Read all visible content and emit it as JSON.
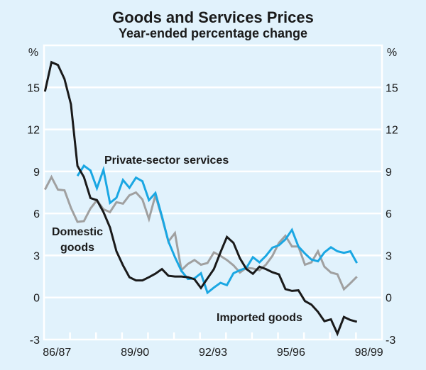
{
  "chart_data": {
    "type": "line",
    "title": "Goods and Services Prices",
    "subtitle": "Year-ended percentage change",
    "ylabel_left": "%",
    "ylabel_right": "%",
    "xlabel": "",
    "ylim": [
      -3,
      18
    ],
    "yticks": [
      -3,
      0,
      3,
      6,
      9,
      12,
      15
    ],
    "ytick_labels": [
      "-3",
      "0",
      "3",
      "6",
      "9",
      "12",
      "15"
    ],
    "x_range_years": [
      "86/87",
      "98/99"
    ],
    "x_tick_labels": [
      "86/87",
      "89/90",
      "92/93",
      "95/96",
      "98/99"
    ],
    "x_label_positions_year_index": [
      0,
      3,
      6,
      9,
      12
    ],
    "frequency": "quarterly",
    "x_start_quarter_offset": 0.1,
    "grid": true,
    "legend": "inline labels",
    "series": [
      {
        "name": "Imported goods",
        "label": "Imported goods",
        "color": "#1a1a1a",
        "start_index": 0,
        "values": [
          14.7,
          16.8,
          16.6,
          15.6,
          13.8,
          9.4,
          8.6,
          7.1,
          6.95,
          6.1,
          5.0,
          3.3,
          2.3,
          1.45,
          1.22,
          1.22,
          1.45,
          1.7,
          2.03,
          1.55,
          1.5,
          1.5,
          1.45,
          1.3,
          0.68,
          1.36,
          2.03,
          3.22,
          4.32,
          3.9,
          2.8,
          2.03,
          1.69,
          2.2,
          2.03,
          1.8,
          1.65,
          0.6,
          0.47,
          0.51,
          -0.25,
          -0.51,
          -1.02,
          -1.69,
          -1.56,
          -2.58,
          -1.39,
          -1.61,
          -1.73
        ]
      },
      {
        "name": "Domestic goods",
        "label": [
          "Domestic",
          "goods"
        ],
        "color": "#a0a0a0",
        "start_index": 0,
        "values": [
          7.7,
          8.6,
          7.7,
          7.65,
          6.4,
          5.4,
          5.45,
          6.35,
          6.95,
          6.3,
          6.1,
          6.8,
          6.7,
          7.3,
          7.5,
          7.0,
          5.6,
          7.3,
          5.7,
          4.0,
          4.6,
          1.95,
          2.4,
          2.68,
          2.34,
          2.46,
          3.22,
          2.97,
          2.68,
          2.3,
          1.78,
          2.12,
          2.07,
          1.95,
          2.34,
          2.97,
          3.9,
          4.41,
          3.64,
          3.64,
          2.34,
          2.51,
          3.3,
          2.2,
          1.78,
          1.66,
          0.59,
          1.02,
          1.49
        ]
      },
      {
        "name": "Private-sector services",
        "label": "Private-sector services",
        "color": "#1aa7e3",
        "start_index": 5,
        "values": [
          8.68,
          9.41,
          9.07,
          7.8,
          9.12,
          6.75,
          7.12,
          8.39,
          7.83,
          8.56,
          8.3,
          6.95,
          7.46,
          5.8,
          4.0,
          2.88,
          1.9,
          1.32,
          1.36,
          1.73,
          0.34,
          0.71,
          1.05,
          0.88,
          1.73,
          1.95,
          2.12,
          2.88,
          2.51,
          2.97,
          3.56,
          3.73,
          4.15,
          4.83,
          3.64,
          3.14,
          2.71,
          2.58,
          3.22,
          3.59,
          3.3,
          3.19,
          3.3,
          2.46
        ]
      }
    ]
  },
  "colors": {
    "background": "#e1f2fc",
    "grid": "#ffffff",
    "text": "#1a1a1a"
  }
}
